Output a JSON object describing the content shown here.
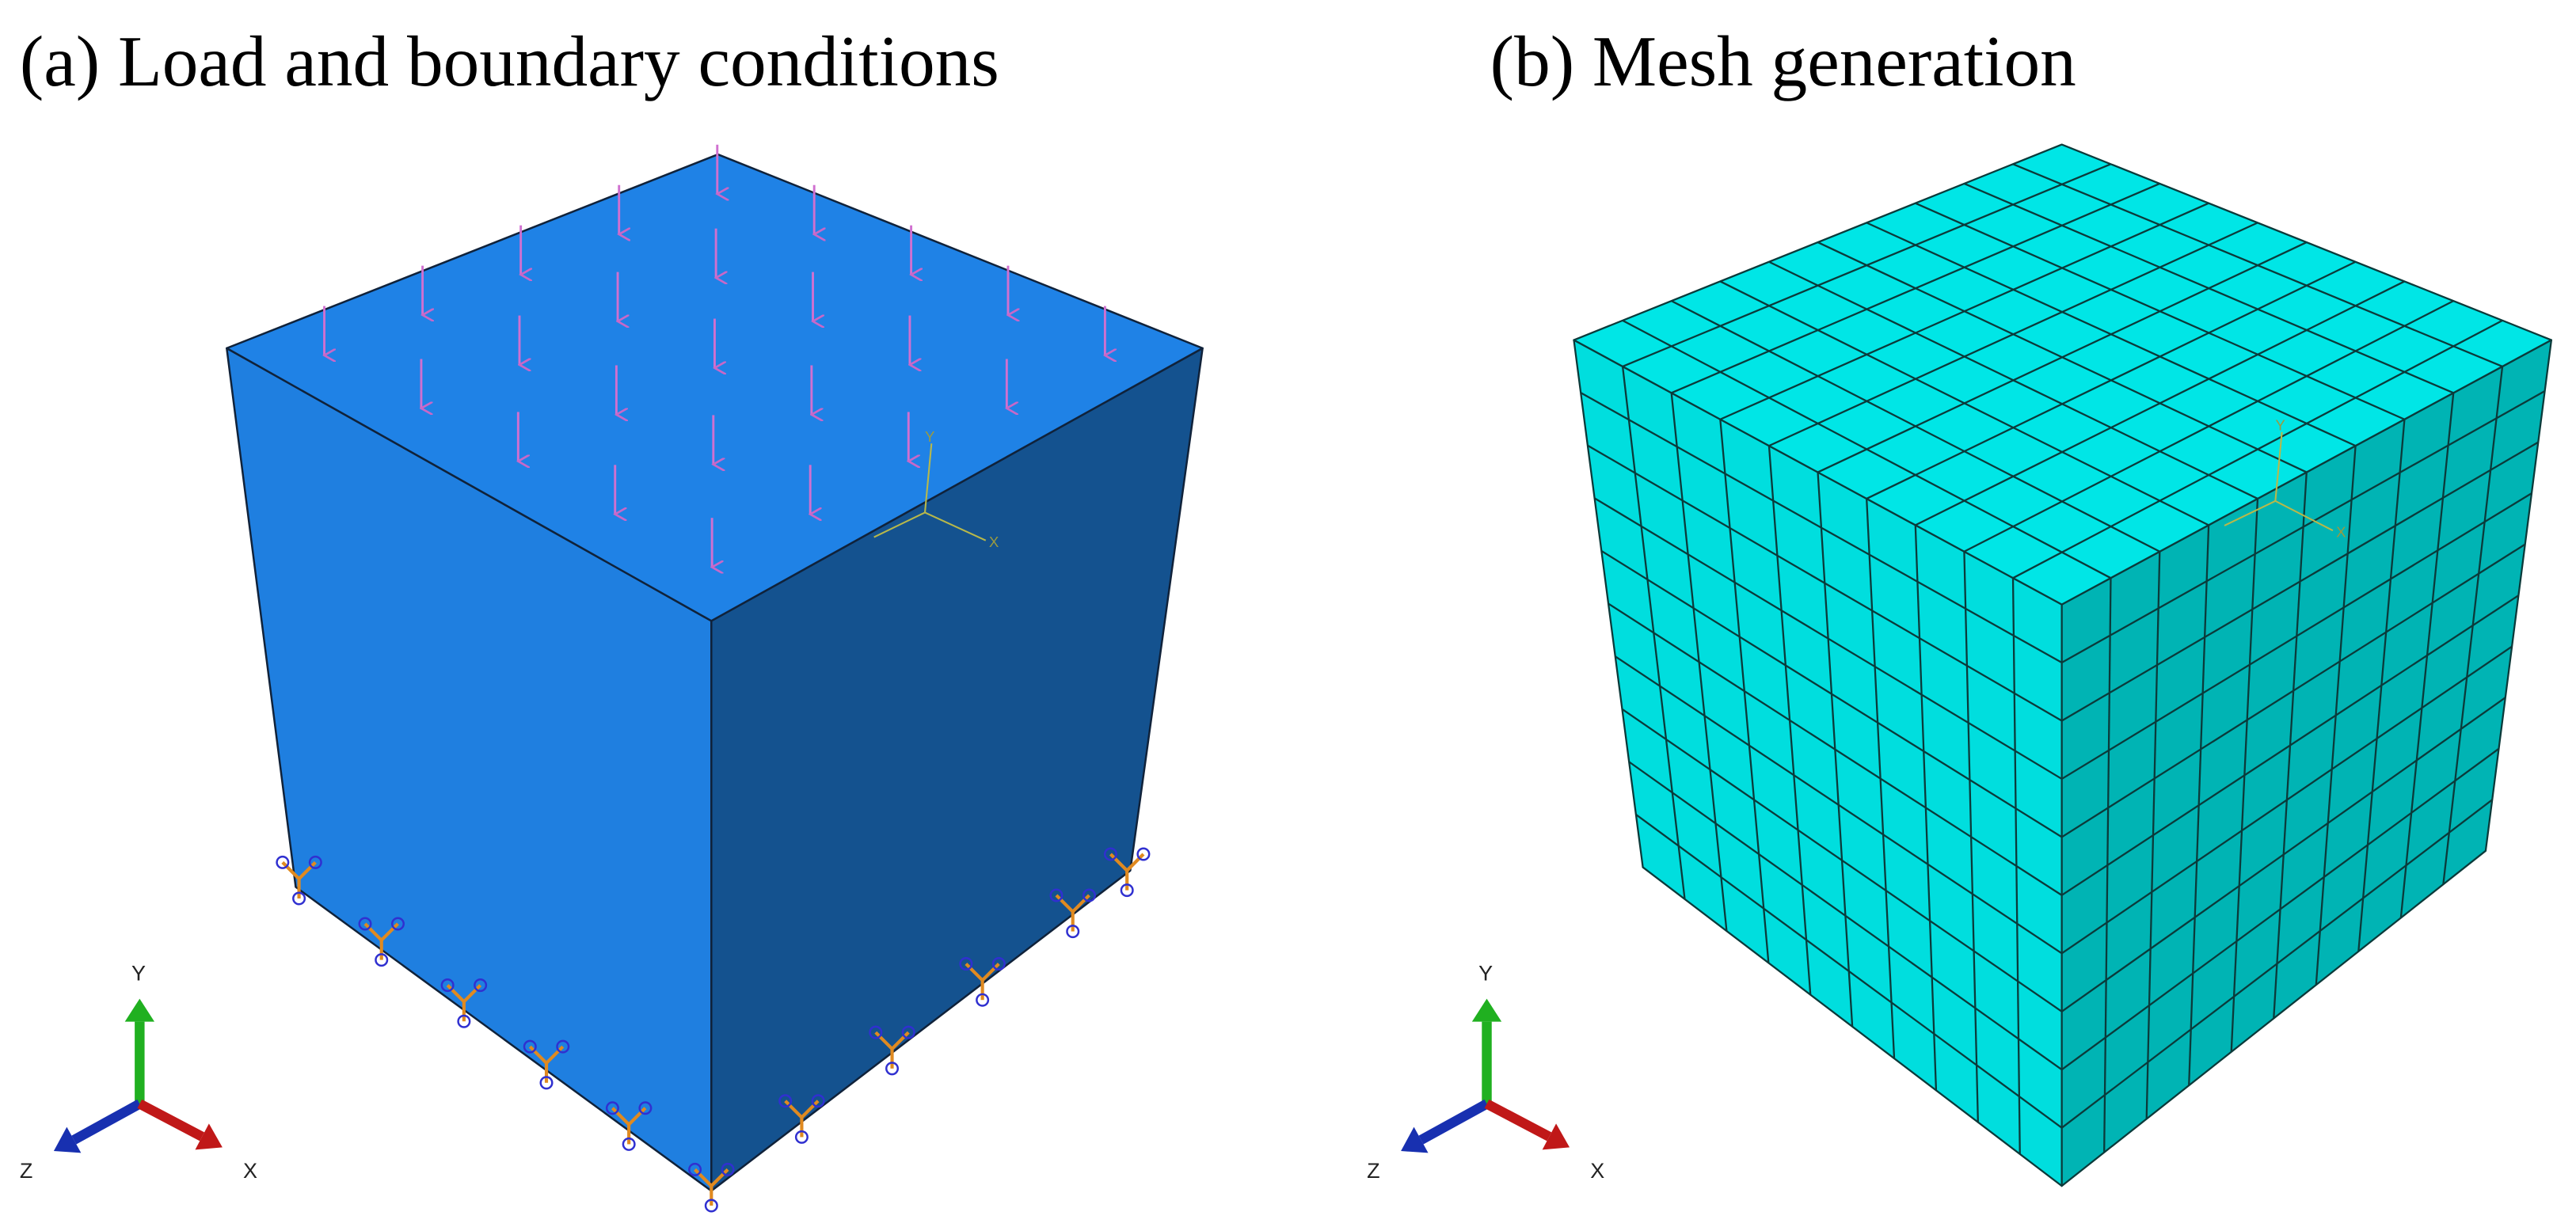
{
  "panels": [
    {
      "title": "(a) Load and boundary conditions",
      "triad": {
        "y": "Y",
        "z": "Z",
        "x": "X"
      },
      "local_axes": {
        "y": "Y",
        "x": "X"
      }
    },
    {
      "title": "(b) Mesh generation",
      "triad": {
        "y": "Y",
        "z": "Z",
        "x": "X"
      },
      "local_axes": {
        "y": "Y",
        "x": "X"
      }
    }
  ]
}
